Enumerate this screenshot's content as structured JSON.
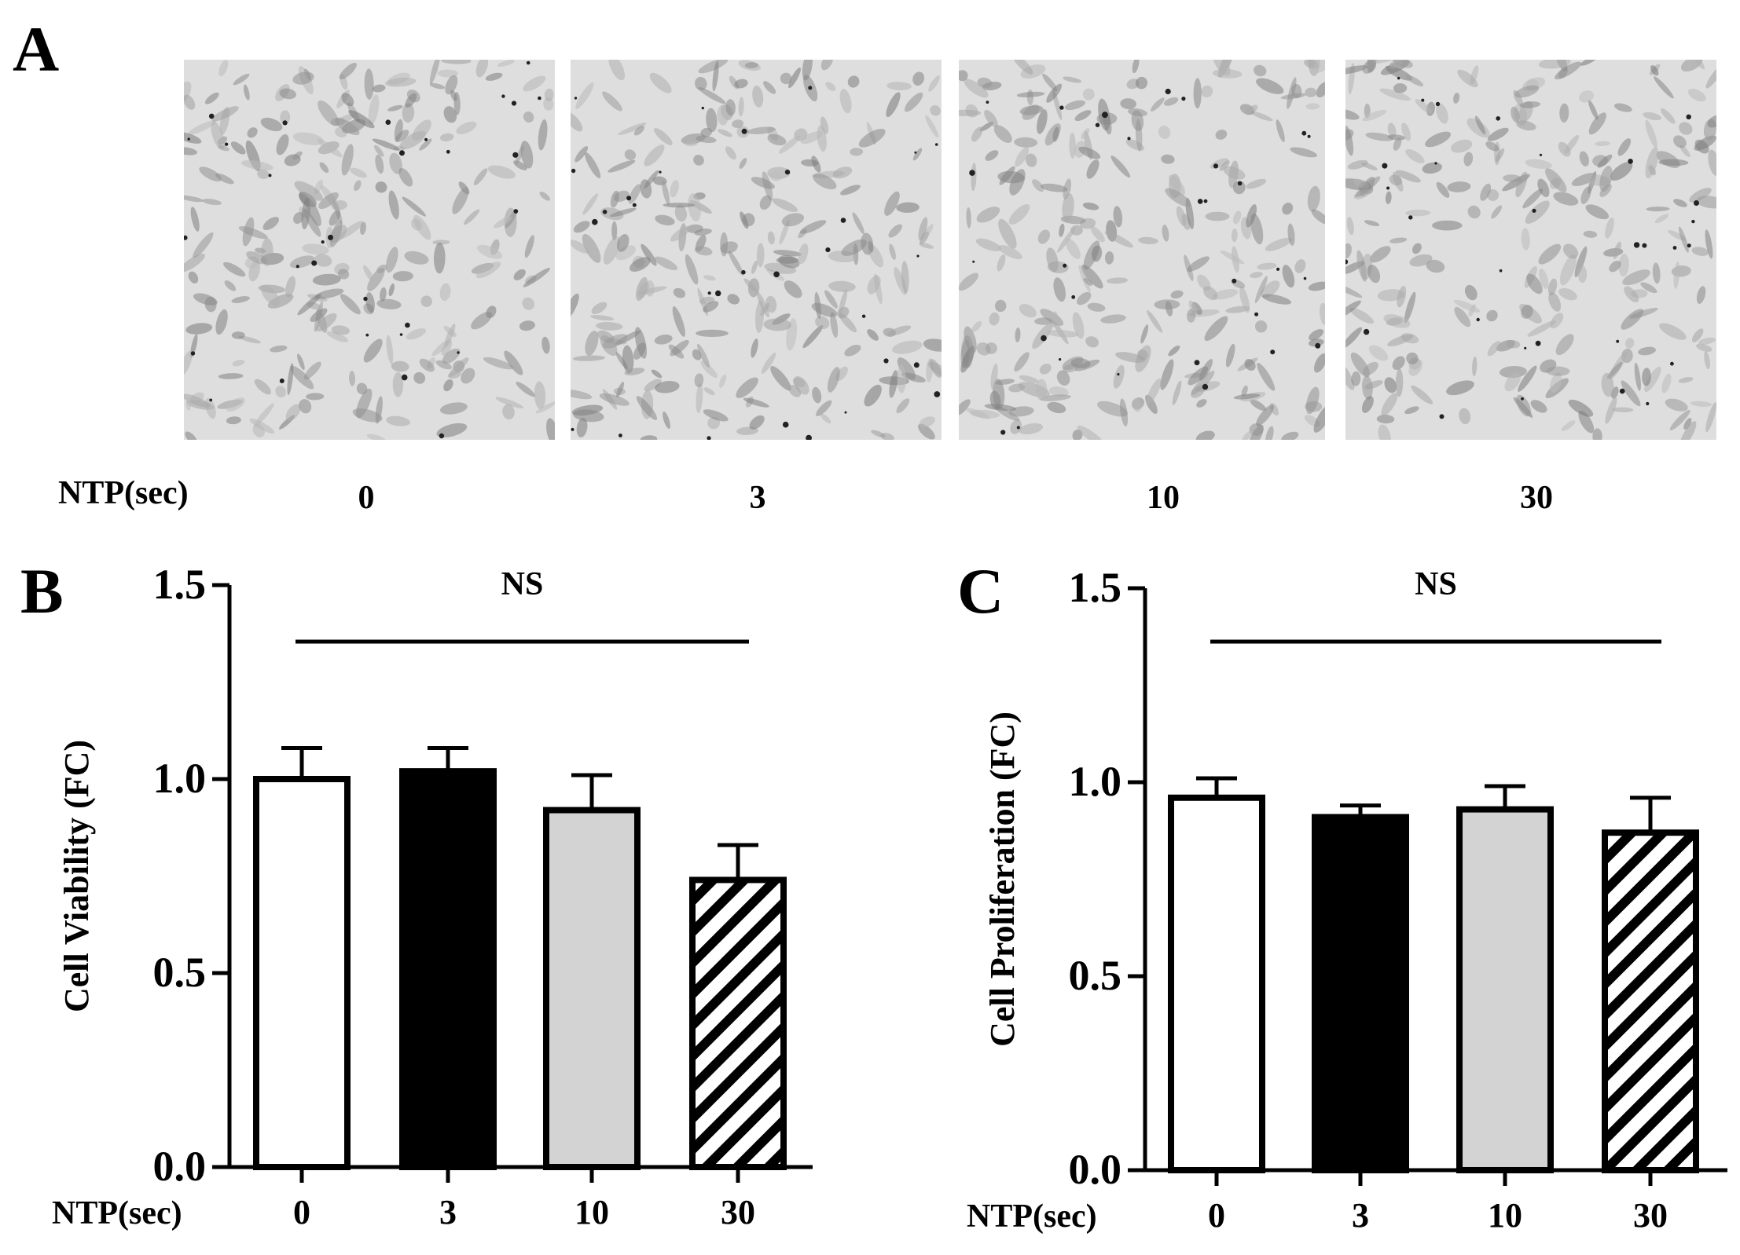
{
  "panel_a": {
    "letter": "A",
    "row_label": "NTP(sec)",
    "captions": [
      "0",
      "3",
      "10",
      "30"
    ]
  },
  "panel_b": {
    "letter": "B"
  },
  "panel_c": {
    "letter": "C"
  },
  "chart_data": [
    {
      "type": "bar",
      "panel": "B",
      "categories": [
        "0",
        "3",
        "10",
        "30"
      ],
      "values": [
        1.0,
        1.02,
        0.92,
        0.74
      ],
      "errors": [
        0.08,
        0.06,
        0.09,
        0.09
      ],
      "bar_fills": [
        "white",
        "black",
        "lightgray",
        "hatched"
      ],
      "ylabel": "Cell Viability (FC)",
      "xlabel": "NTP(sec)",
      "ylim": [
        0.0,
        1.5
      ],
      "yticks": [
        "0.0",
        "0.5",
        "1.0",
        "1.5"
      ],
      "annotation": "NS"
    },
    {
      "type": "bar",
      "panel": "C",
      "categories": [
        "0",
        "3",
        "10",
        "30"
      ],
      "values": [
        0.96,
        0.91,
        0.93,
        0.87
      ],
      "errors": [
        0.05,
        0.03,
        0.06,
        0.09
      ],
      "bar_fills": [
        "white",
        "black",
        "lightgray",
        "hatched"
      ],
      "ylabel": "Cell Proliferation (FC)",
      "xlabel": "NTP(sec)",
      "ylim": [
        0.0,
        1.5
      ],
      "yticks": [
        "0.0",
        "0.5",
        "1.0",
        "1.5"
      ],
      "annotation": "NS"
    }
  ]
}
